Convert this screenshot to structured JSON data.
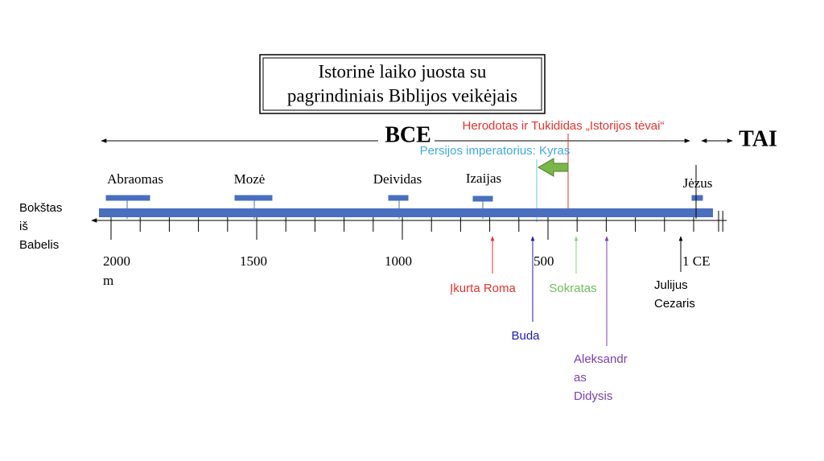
{
  "title": {
    "lines": [
      "Istorinė laiko juosta su",
      "pagrindiniais Biblijos veikėjais"
    ]
  },
  "eras": {
    "bce": "BCE",
    "ce": "TAI"
  },
  "start": {
    "lines": [
      "Bokštas",
      "iš",
      "Babelis"
    ]
  },
  "figures": [
    "Abraomas",
    "Mozė",
    "Deividas",
    "Izaijas",
    "Jėzus"
  ],
  "scale": [
    {
      "lines": [
        "2000",
        "m"
      ]
    },
    {
      "lines": [
        "1500"
      ]
    },
    {
      "lines": [
        "1000"
      ]
    },
    {
      "lines": [
        "500"
      ]
    },
    {
      "lines": [
        "1 CE"
      ]
    }
  ],
  "events_above": [
    "Herodotas ir Tukididas „Istorijos tėvai“",
    "Persijos imperatorius: Kyras"
  ],
  "events_below": [
    {
      "lines": [
        "Įkurta Roma"
      ]
    },
    {
      "lines": [
        "Buda"
      ]
    },
    {
      "lines": [
        "Sokratas"
      ]
    },
    {
      "lines": [
        "Aleksandr",
        "as",
        "Didysis"
      ]
    },
    {
      "lines": [
        "Julijus",
        "Cezaris"
      ]
    }
  ]
}
